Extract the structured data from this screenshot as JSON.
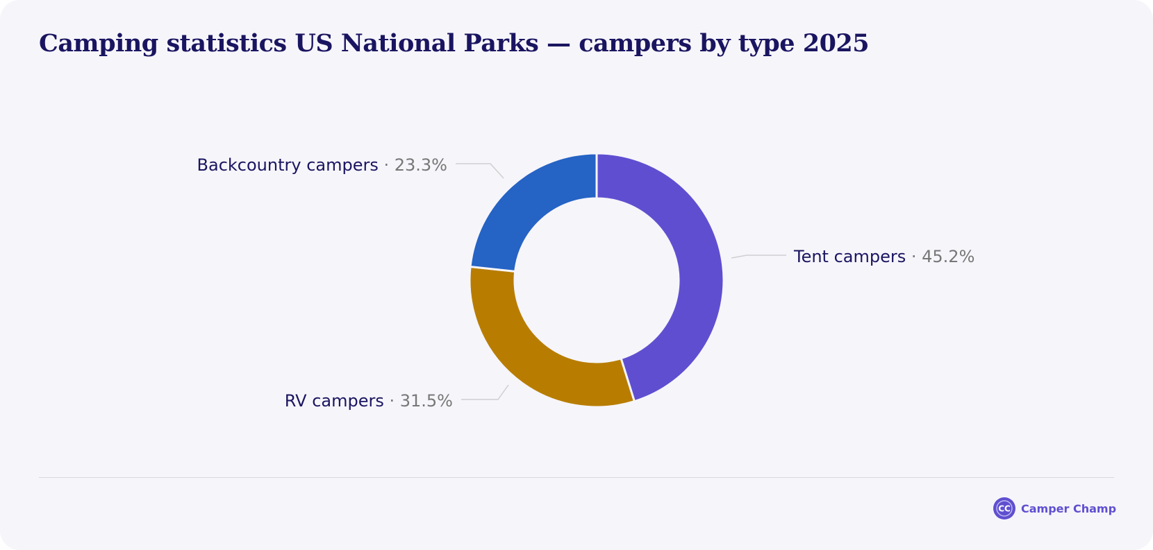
{
  "chart_data": {
    "type": "pie",
    "title": "Camping statistics US National Parks — campers by type 2025",
    "slices": [
      {
        "label": "Tent campers",
        "value": 45.2,
        "value_label": "45.2%",
        "color": "#5f4fd0"
      },
      {
        "label": "RV campers",
        "value": 31.5,
        "value_label": "31.5%",
        "color": "#b87d00"
      },
      {
        "label": "Backcountry campers",
        "value": 23.3,
        "value_label": "23.3%",
        "color": "#2563c4"
      }
    ],
    "donut": true,
    "separator": "·"
  },
  "brand": {
    "logo_text": "CC",
    "name": "Camper Champ"
  },
  "colors": {
    "background": "#f6f5fa",
    "title": "#1a1560",
    "label": "#1a1560",
    "percent": "#777777",
    "leader": "#cfcfcf",
    "brand": "#5f4fd0"
  }
}
